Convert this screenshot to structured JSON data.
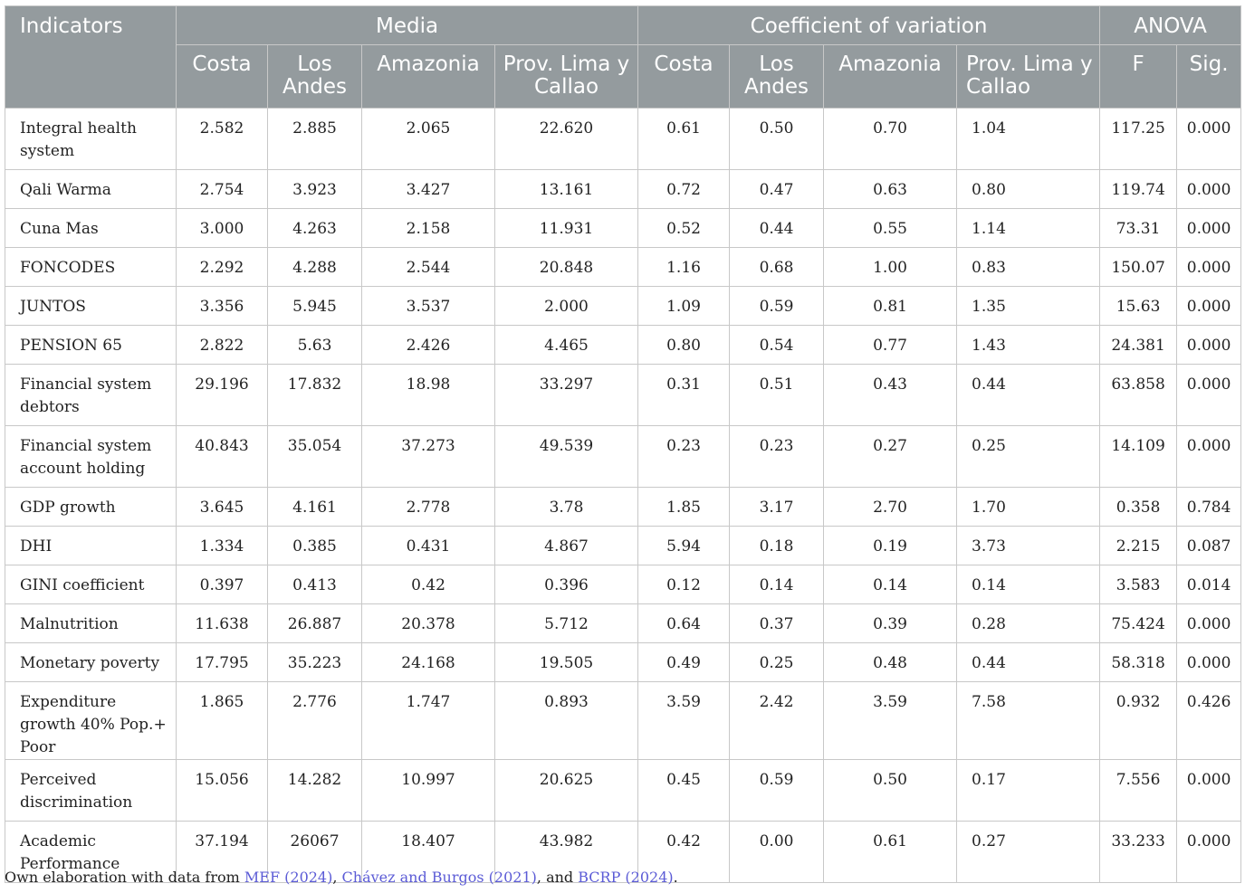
{
  "table": {
    "header": {
      "indicators": "Indicators",
      "groups": [
        {
          "label": "Media"
        },
        {
          "label": "Coefficient of variation"
        },
        {
          "label": "ANOVA"
        }
      ],
      "subcolumns": [
        "Costa",
        "Los Andes",
        "Amazonia",
        "Prov. Lima y Callao",
        "Costa",
        "Los Andes",
        "Amazonia",
        "Prov. Lima y Callao",
        "F",
        "Sig."
      ]
    },
    "rows": [
      {
        "indicator": "Integral health system",
        "values": [
          "2.582",
          "2.885",
          "2.065",
          "22.620",
          "0.61",
          "0.50",
          "0.70",
          "1.04",
          "117.25",
          "0.000"
        ]
      },
      {
        "indicator": "Qali Warma",
        "values": [
          "2.754",
          "3.923",
          "3.427",
          "13.161",
          "0.72",
          "0.47",
          "0.63",
          "0.80",
          "119.74",
          "0.000"
        ]
      },
      {
        "indicator": "Cuna Mas",
        "values": [
          "3.000",
          "4.263",
          "2.158",
          "11.931",
          "0.52",
          "0.44",
          "0.55",
          "1.14",
          "73.31",
          "0.000"
        ]
      },
      {
        "indicator": "FONCODES",
        "values": [
          "2.292",
          "4.288",
          "2.544",
          "20.848",
          "1.16",
          "0.68",
          "1.00",
          "0.83",
          "150.07",
          "0.000"
        ]
      },
      {
        "indicator": "JUNTOS",
        "values": [
          "3.356",
          "5.945",
          "3.537",
          "2.000",
          "1.09",
          "0.59",
          "0.81",
          "1.35",
          "15.63",
          "0.000"
        ]
      },
      {
        "indicator": "PENSION 65",
        "values": [
          "2.822",
          "5.63",
          "2.426",
          "4.465",
          "0.80",
          "0.54",
          "0.77",
          "1.43",
          "24.381",
          "0.000"
        ]
      },
      {
        "indicator": "Financial system debtors",
        "values": [
          "29.196",
          "17.832",
          "18.98",
          "33.297",
          "0.31",
          "0.51",
          "0.43",
          "0.44",
          "63.858",
          "0.000"
        ]
      },
      {
        "indicator": "Financial system account holding",
        "values": [
          "40.843",
          "35.054",
          "37.273",
          "49.539",
          "0.23",
          "0.23",
          "0.27",
          "0.25",
          "14.109",
          "0.000"
        ]
      },
      {
        "indicator": "GDP growth",
        "values": [
          "3.645",
          "4.161",
          "2.778",
          "3.78",
          "1.85",
          "3.17",
          "2.70",
          "1.70",
          "0.358",
          "0.784"
        ]
      },
      {
        "indicator": "DHI",
        "values": [
          "1.334",
          "0.385",
          "0.431",
          "4.867",
          "5.94",
          "0.18",
          "0.19",
          "3.73",
          "2.215",
          "0.087"
        ]
      },
      {
        "indicator": "GINI coefficient",
        "values": [
          "0.397",
          "0.413",
          "0.42",
          "0.396",
          "0.12",
          "0.14",
          "0.14",
          "0.14",
          "3.583",
          "0.014"
        ]
      },
      {
        "indicator": "Malnutrition",
        "values": [
          "11.638",
          "26.887",
          "20.378",
          "5.712",
          "0.64",
          "0.37",
          "0.39",
          "0.28",
          "75.424",
          "0.000"
        ]
      },
      {
        "indicator": "Monetary poverty",
        "values": [
          "17.795",
          "35.223",
          "24.168",
          "19.505",
          "0.49",
          "0.25",
          "0.48",
          "0.44",
          "58.318",
          "0.000"
        ]
      },
      {
        "indicator": "Expenditure growth 40% Pop.+ Poor",
        "values": [
          "1.865",
          "2.776",
          "1.747",
          "0.893",
          "3.59",
          "2.42",
          "3.59",
          "7.58",
          "0.932",
          "0.426"
        ]
      },
      {
        "indicator": "Perceived discrimination",
        "values": [
          "15.056",
          "14.282",
          "10.997",
          "20.625",
          "0.45",
          "0.59",
          "0.50",
          "0.17",
          "7.556",
          "0.000"
        ]
      },
      {
        "indicator": "Academic Performance",
        "values": [
          "37.194",
          "26067",
          "18.407",
          "43.982",
          "0.42",
          "0.00",
          "0.61",
          "0.27",
          "33.233",
          "0.000"
        ]
      }
    ]
  },
  "footnote": {
    "prefix": "Own elaboration with data from ",
    "ref1": "MEF (2024)",
    "sep1": ", ",
    "ref2": "Chávez and Burgos (2021)",
    "sep2": ", and ",
    "ref3": "BCRP (2024)",
    "suffix": "."
  },
  "colors": {
    "header_bg": "#949b9e",
    "header_text": "#ffffff",
    "link": "#5b5bd6"
  }
}
